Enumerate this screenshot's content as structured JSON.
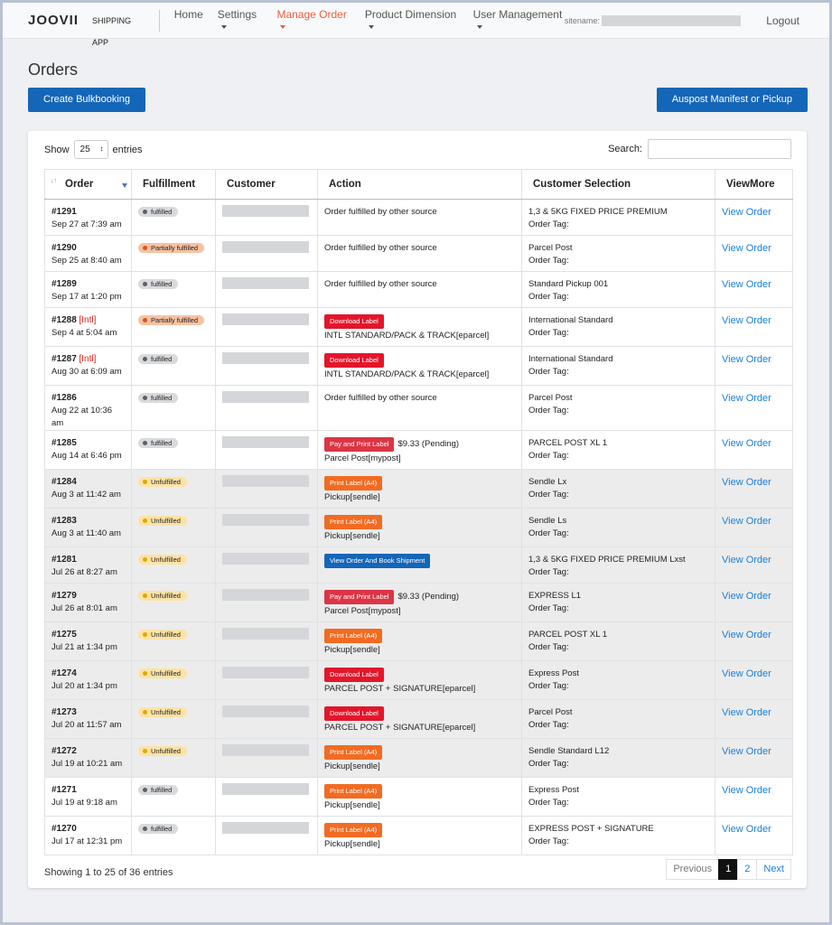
{
  "nav": {
    "brand": "JOOVII",
    "app": "SHIPPING APP",
    "links": [
      "Home",
      "Settings",
      "Manage Order",
      "Product Dimension",
      "User Management"
    ],
    "active": 2,
    "dropdowns": [
      1,
      2,
      3,
      4
    ],
    "site_label": "sitename:",
    "logout": "Logout"
  },
  "page": {
    "title": "Orders",
    "left_button": "Create Bulkbooking",
    "right_button": "Auspost Manifest or Pickup"
  },
  "controls": {
    "show": "Show",
    "length": "25",
    "entries": "entries",
    "search": "Search:"
  },
  "table": {
    "headers": [
      "Order",
      "Fulfillment",
      "Customer",
      "Action",
      "Customer Selection",
      "ViewMore"
    ],
    "rows": [
      {
        "order": "#1291",
        "date": "Sep 27 at 7:39 am",
        "status": {
          "label": "fulfilled",
          "color": "#d9dadc",
          "dot": "#5a5f66"
        },
        "action": {
          "text": "Order fulfilled by other source"
        },
        "selection": "1,3 & 5KG FIXED PRICE PREMIUM",
        "tag": "Order Tag:",
        "view": "View Order"
      },
      {
        "order": "#1290",
        "date": "Sep 25 at 8:40 am",
        "status": {
          "label": "Partially fulfilled",
          "color": "#f7c2a2",
          "dot": "#d9531e"
        },
        "action": {
          "text": "Order fulfilled by other source"
        },
        "selection": "Parcel Post",
        "tag": "Order Tag:",
        "view": "View Order"
      },
      {
        "order": "#1289",
        "date": "Sep 17 at 1:20 pm",
        "status": {
          "label": "fulfilled",
          "color": "#d9dadc",
          "dot": "#5a5f66"
        },
        "action": {
          "text": "Order fulfilled by other source"
        },
        "selection": "Standard Pickup 001",
        "tag": "Order Tag:",
        "view": "View Order"
      },
      {
        "order": "#1288",
        "intl": "[Intl]",
        "date": "Sep 4 at 5:04 am",
        "status": {
          "label": "Partially fulfilled",
          "color": "#f7c2a2",
          "dot": "#d9531e"
        },
        "action": {
          "button": {
            "label": "Download Label",
            "color": "#e3162b"
          },
          "detail": "INTL STANDARD/PACK & TRACK[eparcel]"
        },
        "selection": "International Standard",
        "tag": "Order Tag:",
        "view": "View Order"
      },
      {
        "order": "#1287",
        "intl": "[Intl]",
        "date": "Aug 30 at 6:09 am",
        "status": {
          "label": "fulfilled",
          "color": "#d9dadc",
          "dot": "#5a5f66"
        },
        "action": {
          "button": {
            "label": "Download Label",
            "color": "#e3162b"
          },
          "detail": "INTL STANDARD/PACK & TRACK[eparcel]"
        },
        "selection": "International Standard",
        "tag": "Order Tag:",
        "view": "View Order"
      },
      {
        "order": "#1286",
        "date": "Aug 22 at 10:36 am",
        "status": {
          "label": "fulfilled",
          "color": "#d9dadc",
          "dot": "#5a5f66"
        },
        "action": {
          "text": "Order fulfilled by other source"
        },
        "selection": "Parcel Post",
        "tag": "Order Tag:",
        "view": "View Order"
      },
      {
        "order": "#1285",
        "date": "Aug 14 at 6:46 pm",
        "status": {
          "label": "fulfilled",
          "color": "#d9dadc",
          "dot": "#5a5f66"
        },
        "action": {
          "button": {
            "label": "Pay and Print Label",
            "color": "#dc3545"
          },
          "amount": "$9.33 (Pending)",
          "detail": "Parcel Post[mypost]"
        },
        "selection": "PARCEL POST XL 1",
        "tag": "Order Tag:",
        "view": "View Order"
      },
      {
        "order": "#1284",
        "date": "Aug 3 at 11:42 am",
        "background": "#ececec",
        "status": {
          "label": "Unfulfilled",
          "color": "#fde3a4",
          "dot": "#e0a800"
        },
        "action": {
          "button": {
            "label": "Print Label (A4)",
            "color": "#f26b22"
          },
          "detail": "Pickup[sendle]"
        },
        "selection": "Sendle Lx",
        "tag": "Order Tag:",
        "view": "View Order"
      },
      {
        "order": "#1283",
        "date": "Aug 3 at 11:40 am",
        "background": "#ececec",
        "status": {
          "label": "Unfulfilled",
          "color": "#fde3a4",
          "dot": "#e0a800"
        },
        "action": {
          "button": {
            "label": "Print Label (A4)",
            "color": "#f26b22"
          },
          "detail": "Pickup[sendle]"
        },
        "selection": "Sendle Ls",
        "tag": "Order Tag:",
        "view": "View Order"
      },
      {
        "order": "#1281",
        "date": "Jul 26 at 8:27 am",
        "background": "#ececec",
        "status": {
          "label": "Unfulfilled",
          "color": "#fde3a4",
          "dot": "#e0a800"
        },
        "action": {
          "button": {
            "label": "View Order And Book Shipment",
            "color": "#1466b8"
          }
        },
        "selection": "1,3 & 5KG FIXED PRICE PREMIUM Lxst",
        "tag": "Order Tag:",
        "view": "View Order"
      },
      {
        "order": "#1279",
        "date": "Jul 26 at 8:01 am",
        "background": "#ececec",
        "status": {
          "label": "Unfulfilled",
          "color": "#fde3a4",
          "dot": "#e0a800"
        },
        "action": {
          "button": {
            "label": "Pay and Print Label",
            "color": "#dc3545"
          },
          "amount": "$9.33 (Pending)",
          "detail": "Parcel Post[mypost]"
        },
        "selection": "EXPRESS L1",
        "tag": "Order Tag:",
        "view": "View Order"
      },
      {
        "order": "#1275",
        "date": "Jul 21 at 1:34 pm",
        "background": "#ececec",
        "status": {
          "label": "Unfulfilled",
          "color": "#fde3a4",
          "dot": "#e0a800"
        },
        "action": {
          "button": {
            "label": "Print Label (A4)",
            "color": "#f26b22"
          },
          "detail": "Pickup[sendle]"
        },
        "selection": "PARCEL POST XL 1",
        "tag": "Order Tag:",
        "view": "View Order"
      },
      {
        "order": "#1274",
        "date": "Jul 20 at 1:34 pm",
        "background": "#ececec",
        "status": {
          "label": "Unfulfilled",
          "color": "#fde3a4",
          "dot": "#e0a800"
        },
        "action": {
          "button": {
            "label": "Download Label",
            "color": "#e3162b"
          },
          "detail": "PARCEL POST + SIGNATURE[eparcel]"
        },
        "selection": "Express Post",
        "tag": "Order Tag:",
        "view": "View Order"
      },
      {
        "order": "#1273",
        "date": "Jul 20 at 11:57 am",
        "background": "#ececec",
        "status": {
          "label": "Unfulfilled",
          "color": "#fde3a4",
          "dot": "#e0a800"
        },
        "action": {
          "button": {
            "label": "Download Label",
            "color": "#e3162b"
          },
          "detail": "PARCEL POST + SIGNATURE[eparcel]"
        },
        "selection": "Parcel Post",
        "tag": "Order Tag:",
        "view": "View Order"
      },
      {
        "order": "#1272",
        "date": "Jul 19 at 10:21 am",
        "background": "#ececec",
        "status": {
          "label": "Unfulfilled",
          "color": "#fde3a4",
          "dot": "#e0a800"
        },
        "action": {
          "button": {
            "label": "Print Label (A4)",
            "color": "#f26b22"
          },
          "detail": "Pickup[sendle]"
        },
        "selection": "Sendle Standard L12",
        "tag": "Order Tag:",
        "view": "View Order"
      },
      {
        "order": "#1271",
        "date": "Jul 19 at 9:18 am",
        "status": {
          "label": "fulfilled",
          "color": "#d9dadc",
          "dot": "#5a5f66"
        },
        "action": {
          "button": {
            "label": "Print Label (A4)",
            "color": "#f26b22"
          },
          "detail": "Pickup[sendle]"
        },
        "selection": "Express Post",
        "tag": "Order Tag:",
        "view": "View Order"
      },
      {
        "order": "#1270",
        "date": "Jul 17 at 12:31 pm",
        "status": {
          "label": "fulfilled",
          "color": "#d9dadc",
          "dot": "#5a5f66"
        },
        "action": {
          "button": {
            "label": "Print Label (A4)",
            "color": "#f26b22"
          },
          "detail": "Pickup[sendle]"
        },
        "selection": "EXPRESS POST + SIGNATURE",
        "tag": "Order Tag:",
        "view": "View Order"
      }
    ]
  },
  "footer": {
    "info": "Showing 1 to 25 of 36 entries",
    "pages": [
      "Previous",
      "1",
      "2",
      "Next"
    ],
    "current": 1
  }
}
